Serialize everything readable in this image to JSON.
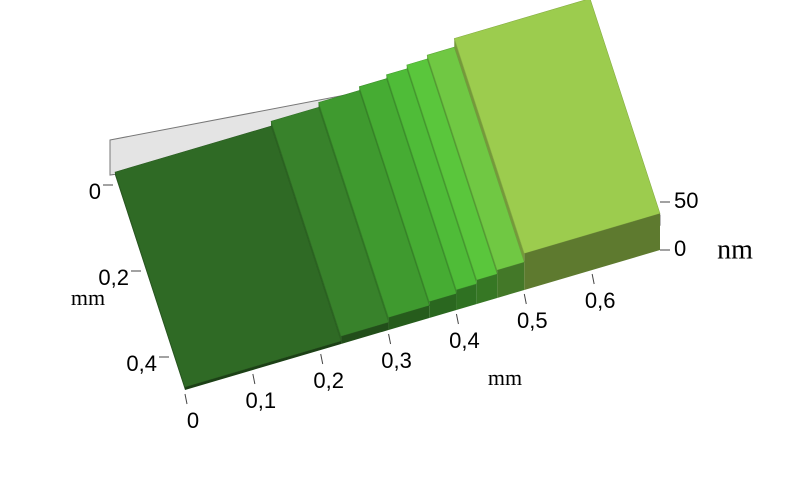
{
  "chart_data": {
    "type": "surface3d",
    "xlabel": "mm",
    "ylabel": "mm",
    "zlabel": "nm",
    "xlim": [
      0,
      0.7
    ],
    "ylim": [
      0,
      0.5
    ],
    "zlim": [
      0,
      50
    ],
    "xticks": [
      {
        "value": 0,
        "label": "0"
      },
      {
        "value": 0.1,
        "label": "0,1"
      },
      {
        "value": 0.2,
        "label": "0,2"
      },
      {
        "value": 0.3,
        "label": "0,3"
      },
      {
        "value": 0.4,
        "label": "0,4"
      },
      {
        "value": 0.5,
        "label": "0,5"
      },
      {
        "value": 0.6,
        "label": "0,6"
      }
    ],
    "yticks": [
      {
        "value": 0,
        "label": "0"
      },
      {
        "value": 0.2,
        "label": "0,2"
      },
      {
        "value": 0.4,
        "label": "0,4"
      }
    ],
    "zticks": [
      0,
      50
    ],
    "terraces": [
      {
        "x": [
          0,
          0.23
        ],
        "z": 3,
        "color": "#2f6a25"
      },
      {
        "x": [
          0.23,
          0.3
        ],
        "z": 8,
        "color": "#38822b"
      },
      {
        "x": [
          0.3,
          0.36
        ],
        "z": 13,
        "color": "#3f9a2f"
      },
      {
        "x": [
          0.36,
          0.4
        ],
        "z": 17,
        "color": "#46ac33"
      },
      {
        "x": [
          0.4,
          0.43
        ],
        "z": 21,
        "color": "#4fbc38"
      },
      {
        "x": [
          0.43,
          0.46
        ],
        "z": 25,
        "color": "#5ac63c"
      },
      {
        "x": [
          0.46,
          0.5
        ],
        "z": 29,
        "color": "#70c843"
      },
      {
        "x": [
          0.5,
          0.7
        ],
        "z": 38,
        "color": "#9ccc4e"
      }
    ]
  }
}
